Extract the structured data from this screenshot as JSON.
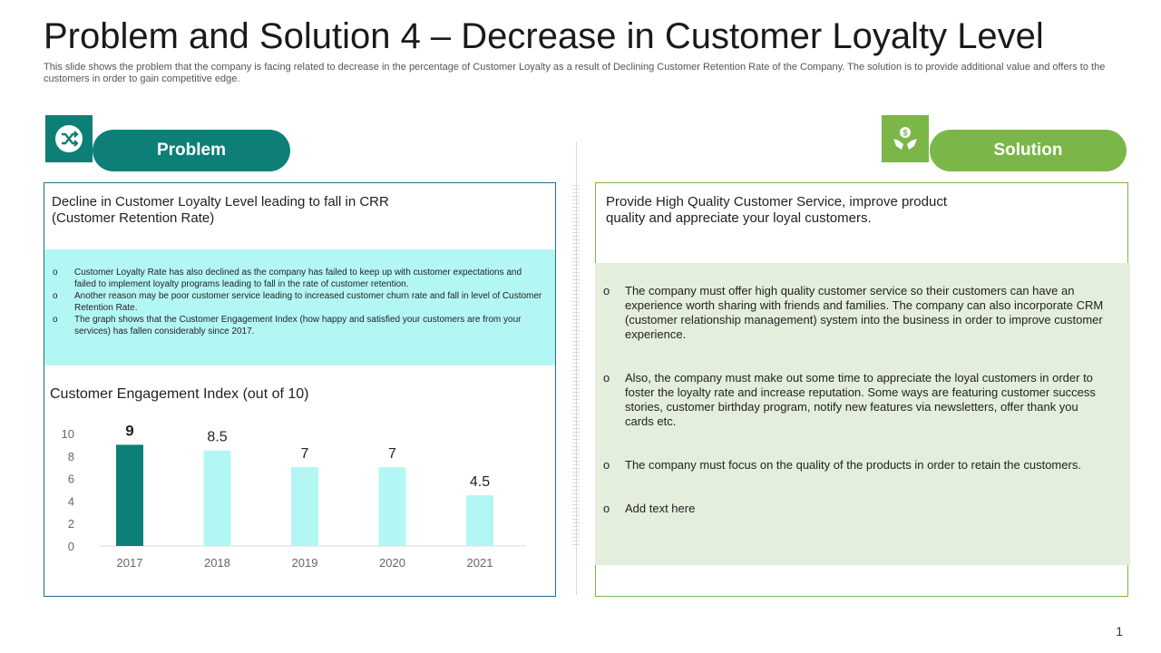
{
  "slide": {
    "title": "Problem and Solution 4 – Decrease in Customer Loyalty Level",
    "subtitle": "This slide shows the problem that the company is facing related to decrease in the percentage of Customer Loyalty as a result of Declining Customer Retention Rate of the Company.  The solution is to provide additional value and offers to the customers in order to gain competitive edge.",
    "page_number": "1"
  },
  "colors": {
    "teal": "#0E7F77",
    "light_cyan": "#B3F7F5",
    "green": "#7AB648",
    "light_green": "#E4EEDC",
    "panel_border_problem": "#1F6F8B",
    "panel_border_solution": "#7AB648"
  },
  "problem": {
    "icon": "shuffle-icon",
    "label": "Problem",
    "heading": "Decline in Customer Loyalty Level leading to fall in CRR (Customer Retention Rate)",
    "bullets": [
      "Customer Loyalty Rate has also declined as the company has failed to keep up with customer expectations and failed to implement loyalty programs leading to fall in the rate of customer retention.",
      "Another reason may be poor customer service leading to increased customer churn rate and fall in level of Customer Retention Rate.",
      "The graph shows that the Customer Engagement Index (how happy and satisfied your customers are from your services) has fallen considerably since 2017."
    ]
  },
  "solution": {
    "icon": "hands-dollar-icon",
    "label": "Solution",
    "heading": "Provide High Quality Customer Service, improve product quality and appreciate your loyal customers.",
    "bullets": [
      "The company must offer high quality customer service so their customers can have an experience  worth sharing with friends and families. The company can also incorporate CRM (customer relationship management) system into the business in order to improve customer experience.",
      "Also, the company must make out some time to appreciate the loyal customers in order to foster the loyalty rate and increase reputation. Some ways are featuring customer success stories, customer birthday program, notify new features via newsletters, offer thank you cards etc.",
      "The company must focus on the quality of the products in order to retain the customers.",
      "Add text here"
    ]
  },
  "chart_data": {
    "type": "bar",
    "title": "Customer Engagement Index (out of 10)",
    "categories": [
      "2017",
      "2018",
      "2019",
      "2020",
      "2021"
    ],
    "values": [
      9,
      8.5,
      7,
      7,
      4.5
    ],
    "data_labels": [
      "9",
      "8.5",
      "7",
      "7",
      "4.5"
    ],
    "ylim": [
      0,
      10
    ],
    "yticks": [
      "0",
      "2",
      "4",
      "6",
      "8",
      "10"
    ],
    "grid": false,
    "highlight_color": "#0E7F77",
    "bar_color": "#B3F7F5"
  }
}
